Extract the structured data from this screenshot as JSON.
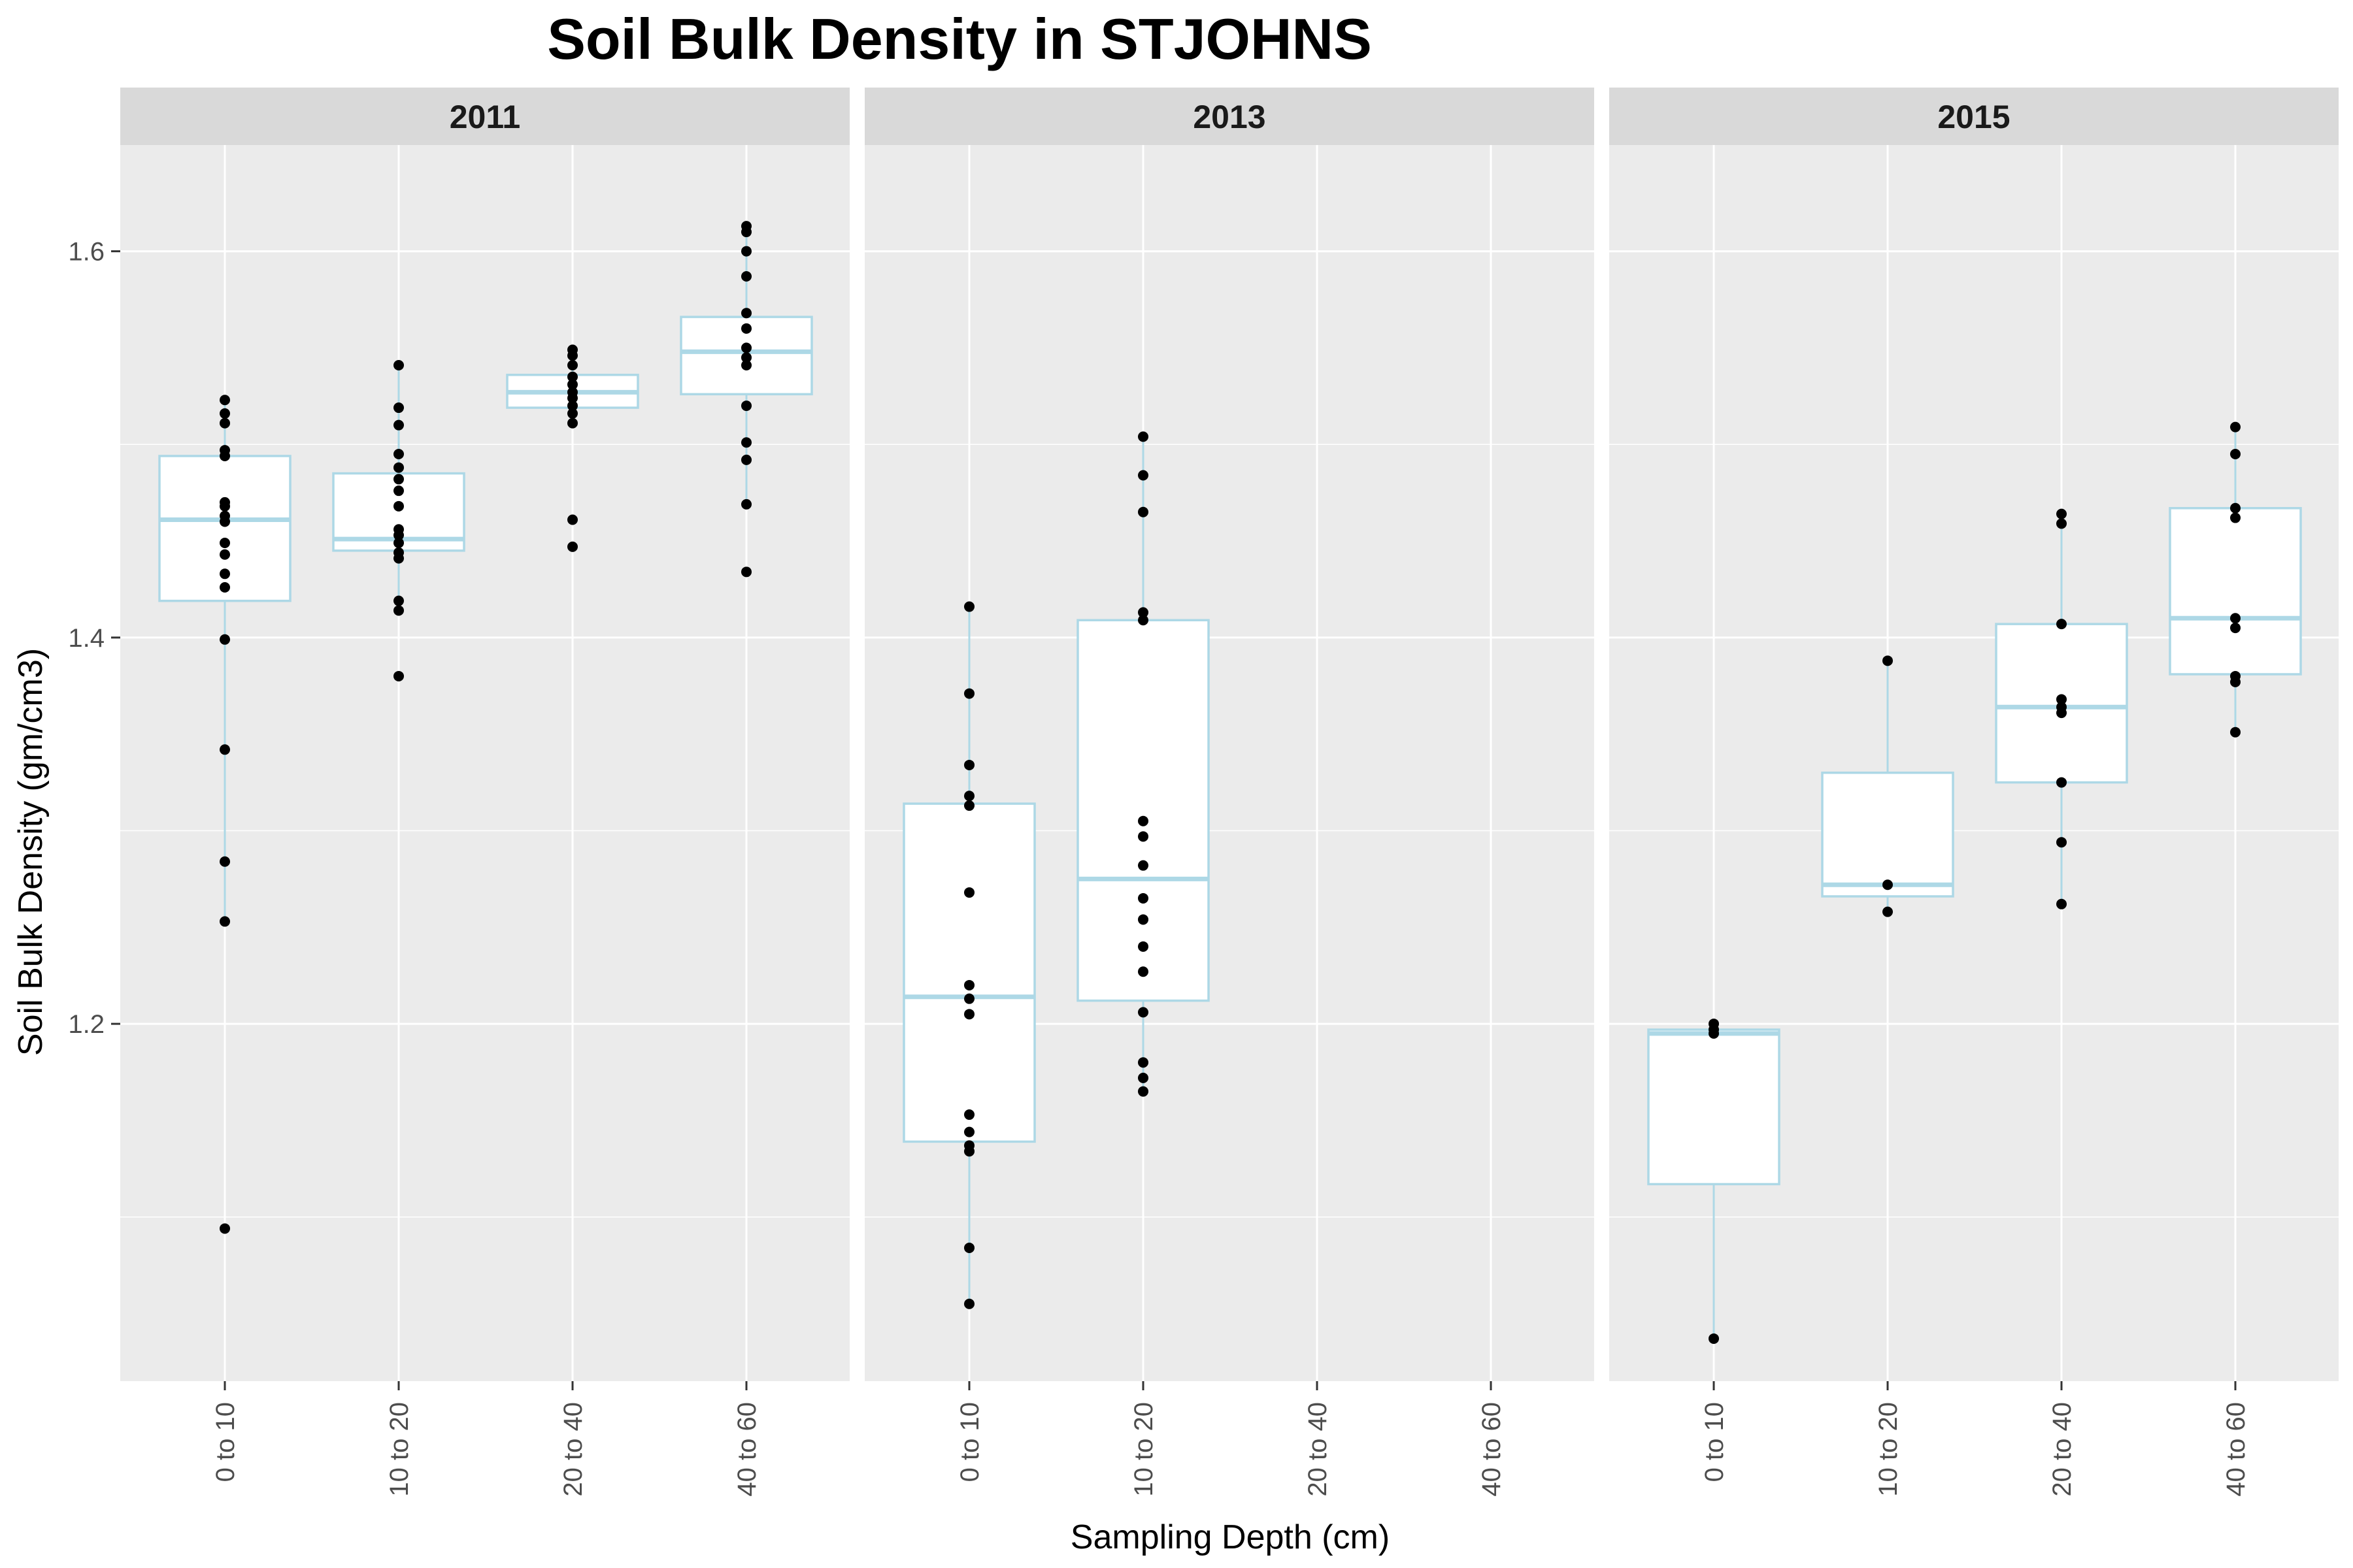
{
  "chart_data": {
    "type": "box",
    "title": "Soil Bulk Density in STJOHNS",
    "xlabel": "Sampling Depth (cm)",
    "ylabel": "Soil Bulk Density (gm/cm3)",
    "categories": [
      "0 to 10",
      "10 to 20",
      "20 to 40",
      "40 to 60"
    ],
    "ylim": [
      1.015,
      1.655
    ],
    "yticks": [
      1.2,
      1.4,
      1.6
    ],
    "ytick_labels": [
      "1.2",
      "1.4",
      "1.6"
    ],
    "grid": true,
    "colors": {
      "panel_bg": "#ebebeb",
      "strip_bg": "#d9d9d9",
      "grid": "#ffffff",
      "box_outline": "#add8e6",
      "box_fill": "#ffffff",
      "points": "#000000"
    },
    "facets": [
      {
        "label": "2011",
        "boxes": [
          {
            "category": "0 to 10",
            "q1": 1.419,
            "median": 1.461,
            "q3": 1.494,
            "whisker_low": 1.253,
            "whisker_high": 1.523,
            "points": [
              1.523,
              1.516,
              1.511,
              1.497,
              1.494,
              1.47,
              1.468,
              1.463,
              1.46,
              1.449,
              1.443,
              1.433,
              1.426,
              1.399,
              1.342,
              1.284,
              1.253,
              1.094
            ]
          },
          {
            "category": "10 to 20",
            "q1": 1.445,
            "median": 1.451,
            "q3": 1.485,
            "whisker_low": 1.414,
            "whisker_high": 1.541,
            "points": [
              1.541,
              1.519,
              1.51,
              1.495,
              1.488,
              1.482,
              1.476,
              1.468,
              1.456,
              1.453,
              1.449,
              1.444,
              1.441,
              1.419,
              1.414,
              1.38
            ]
          },
          {
            "category": "20 to 40",
            "q1": 1.519,
            "median": 1.527,
            "q3": 1.536,
            "whisker_low": 1.51,
            "whisker_high": 1.549,
            "points": [
              1.549,
              1.546,
              1.541,
              1.535,
              1.531,
              1.527,
              1.524,
              1.52,
              1.516,
              1.511,
              1.461,
              1.447
            ]
          },
          {
            "category": "40 to 60",
            "q1": 1.526,
            "median": 1.548,
            "q3": 1.566,
            "whisker_low": 1.47,
            "whisker_high": 1.613,
            "points": [
              1.613,
              1.61,
              1.6,
              1.587,
              1.568,
              1.56,
              1.55,
              1.545,
              1.541,
              1.52,
              1.501,
              1.492,
              1.469,
              1.434
            ]
          }
        ]
      },
      {
        "label": "2013",
        "boxes": [
          {
            "category": "0 to 10",
            "q1": 1.139,
            "median": 1.214,
            "q3": 1.314,
            "whisker_low": 1.055,
            "whisker_high": 1.416,
            "points": [
              1.416,
              1.371,
              1.334,
              1.318,
              1.313,
              1.268,
              1.22,
              1.213,
              1.205,
              1.153,
              1.144,
              1.137,
              1.134,
              1.084,
              1.055
            ]
          },
          {
            "category": "10 to 20",
            "q1": 1.212,
            "median": 1.275,
            "q3": 1.409,
            "whisker_low": 1.165,
            "whisker_high": 1.504,
            "points": [
              1.504,
              1.484,
              1.465,
              1.413,
              1.409,
              1.305,
              1.297,
              1.282,
              1.265,
              1.254,
              1.24,
              1.227,
              1.206,
              1.18,
              1.172,
              1.165
            ]
          }
        ]
      },
      {
        "label": "2015",
        "boxes": [
          {
            "category": "0 to 10",
            "q1": 1.117,
            "median": 1.195,
            "q3": 1.197,
            "whisker_low": 1.037,
            "whisker_high": 1.2,
            "points": [
              1.2,
              1.197,
              1.195,
              1.037
            ]
          },
          {
            "category": "10 to 20",
            "q1": 1.266,
            "median": 1.272,
            "q3": 1.33,
            "whisker_low": 1.258,
            "whisker_high": 1.388,
            "points": [
              1.388,
              1.272,
              1.258
            ]
          },
          {
            "category": "20 to 40",
            "q1": 1.325,
            "median": 1.364,
            "q3": 1.407,
            "whisker_low": 1.262,
            "whisker_high": 1.464,
            "points": [
              1.464,
              1.459,
              1.407,
              1.368,
              1.364,
              1.361,
              1.325,
              1.294,
              1.262
            ]
          },
          {
            "category": "40 to 60",
            "q1": 1.381,
            "median": 1.41,
            "q3": 1.467,
            "whisker_low": 1.351,
            "whisker_high": 1.509,
            "points": [
              1.509,
              1.495,
              1.467,
              1.462,
              1.41,
              1.405,
              1.38,
              1.377,
              1.351
            ]
          }
        ]
      }
    ]
  }
}
